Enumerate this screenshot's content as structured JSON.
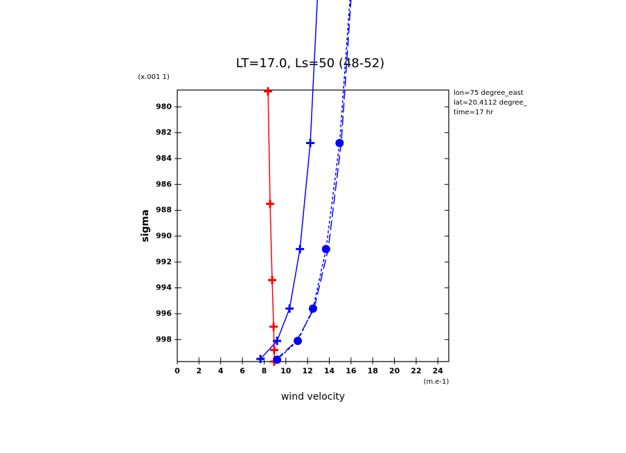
{
  "chart_data": {
    "type": "line",
    "title": "LT=17.0, Ls=50 (48-52)",
    "x_label": "wind velocity",
    "y_label": "sigma",
    "x_unit": "(m.e-1)",
    "y_unit": "(x.001 1)",
    "info": [
      "lon=75 degree_east",
      "lat=20.4112 degree_",
      "time=17 hr"
    ],
    "xlim": [
      0,
      25
    ],
    "xticks": [
      0,
      2,
      4,
      6,
      8,
      10,
      12,
      14,
      16,
      18,
      20,
      22,
      24
    ],
    "ylim": [
      999.7,
      978.7
    ],
    "yticks": [
      980,
      982,
      984,
      986,
      988,
      990,
      992,
      994,
      996,
      998
    ],
    "series": [
      {
        "color": "#ff0000",
        "marker": "plus",
        "dash": "none",
        "x": [
          8.36,
          8.55,
          8.74,
          8.87,
          8.93,
          8.93
        ],
        "values": [
          978.8,
          987.5,
          993.4,
          997.0,
          998.8,
          999.7
        ]
      },
      {
        "color": "#0000ff",
        "marker": "plus",
        "dash": "none",
        "x": [
          7.66,
          9.19,
          10.34,
          11.3,
          12.25,
          12.9
        ],
        "values": [
          999.5,
          998.1,
          995.6,
          991.0,
          982.8,
          971.7
        ]
      },
      {
        "color": "#0000ff",
        "marker": "circle",
        "dash": "4 3",
        "x": [
          9.19,
          11.1,
          12.5,
          13.7,
          14.95,
          15.9
        ],
        "values": [
          999.55,
          998.1,
          995.6,
          991.0,
          982.8,
          971.7
        ]
      },
      {
        "color": "#0000ff",
        "marker": "none",
        "dash": "14 5",
        "x": [
          9.1,
          11.0,
          12.6,
          13.9,
          15.1,
          16.0
        ],
        "values": [
          999.55,
          998.1,
          995.6,
          991.0,
          982.8,
          971.7
        ]
      }
    ]
  }
}
